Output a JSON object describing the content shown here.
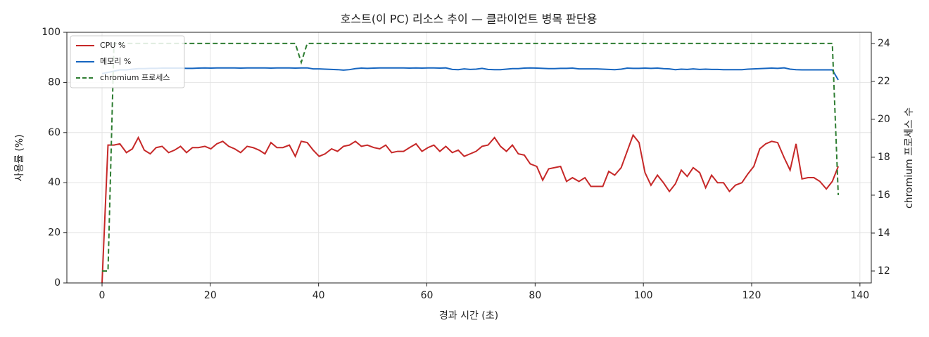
{
  "chart_data": {
    "type": "line",
    "title": "호스트(이 PC) 리소스 추이 — 클라이언트 병목 판단용",
    "xlabel": "경과 시간 (초)",
    "ylabel": "사용률 (%)",
    "y2label": "chromium 프로세스 수",
    "x": [
      0,
      1.1,
      2.2,
      3.3,
      4.5,
      5.6,
      6.7,
      7.8,
      8.9,
      10.0,
      11.1,
      12.3,
      13.4,
      14.5,
      15.6,
      16.7,
      17.8,
      19.0,
      20.1,
      21.2,
      22.3,
      23.4,
      24.5,
      25.6,
      26.8,
      27.9,
      29.0,
      30.1,
      31.2,
      32.3,
      33.4,
      34.6,
      35.7,
      36.8,
      37.9,
      39.0,
      40.1,
      41.2,
      42.4,
      43.5,
      44.6,
      45.7,
      46.8,
      47.9,
      49.0,
      50.2,
      51.3,
      52.4,
      53.5,
      54.6,
      55.7,
      56.8,
      58.0,
      59.1,
      60.2,
      61.3,
      62.4,
      63.5,
      64.7,
      65.8,
      66.9,
      68.0,
      69.1,
      70.2,
      71.3,
      72.5,
      73.6,
      74.7,
      75.8,
      76.9,
      78.0,
      79.1,
      80.3,
      81.4,
      82.5,
      83.6,
      84.7,
      85.8,
      86.9,
      88.1,
      89.2,
      90.3,
      91.4,
      92.5,
      93.6,
      94.7,
      95.9,
      97.0,
      98.1,
      99.2,
      100.3,
      101.4,
      102.6,
      103.7,
      104.8,
      105.9,
      107.0,
      108.1,
      109.2,
      110.4,
      111.5,
      112.6,
      113.7,
      114.8,
      115.9,
      117.0,
      118.2,
      119.3,
      120.4,
      121.5,
      122.6,
      123.7,
      124.8,
      126.0,
      127.1,
      128.2,
      129.3,
      130.4,
      131.5,
      132.6,
      133.8,
      134.9,
      136.0
    ],
    "series": [
      {
        "name": "CPU %",
        "color": "#c62828",
        "linestyle": "solid",
        "axis": "y",
        "values": [
          0,
          55,
          55,
          55.5,
          52,
          53.5,
          58,
          53,
          51.5,
          54,
          54.5,
          52,
          53,
          54.5,
          52,
          54,
          54,
          54.5,
          53.5,
          55.5,
          56.5,
          54.5,
          53.5,
          52,
          54.5,
          54,
          53,
          51.5,
          56,
          54,
          54,
          55,
          50.5,
          56.5,
          56,
          53,
          50.5,
          51.5,
          53.5,
          52.5,
          54.5,
          55,
          56.5,
          54.5,
          55,
          54,
          53.5,
          55,
          52,
          52.5,
          52.5,
          54,
          55.5,
          52.5,
          54,
          55,
          52.5,
          54.5,
          52,
          53,
          50.5,
          51.5,
          52.5,
          54.5,
          55,
          58,
          54.5,
          52.5,
          55,
          51.5,
          51,
          47.5,
          46.5,
          41,
          45.5,
          46,
          46.5,
          40.5,
          42,
          40.5,
          42,
          38.5,
          38.5,
          38.5,
          44.5,
          43,
          46,
          52.5,
          59,
          56,
          44,
          39,
          43,
          40,
          36.5,
          39.5,
          45,
          42.5,
          46,
          44,
          38,
          43,
          40,
          40,
          36.5,
          39,
          40,
          43.5,
          46.5,
          53.5,
          55.5,
          56.5,
          56,
          50,
          45,
          55.5,
          41.5,
          42,
          42,
          40.5,
          37.5,
          40.5,
          46.5
        ]
      },
      {
        "name": "메모리 %",
        "color": "#1565c0",
        "linestyle": "solid",
        "axis": "y",
        "values": [
          83.5,
          84,
          84.5,
          85,
          85,
          85.3,
          85.5,
          85.5,
          85.6,
          85.6,
          85.7,
          85.7,
          85.7,
          85.7,
          85.6,
          85.6,
          85.7,
          85.8,
          85.7,
          85.8,
          85.8,
          85.8,
          85.8,
          85.7,
          85.8,
          85.8,
          85.8,
          85.8,
          85.7,
          85.8,
          85.8,
          85.8,
          85.7,
          85.8,
          85.8,
          85.4,
          85.4,
          85.3,
          85.2,
          85.1,
          84.9,
          85.1,
          85.5,
          85.7,
          85.6,
          85.7,
          85.8,
          85.8,
          85.8,
          85.8,
          85.8,
          85.7,
          85.8,
          85.7,
          85.8,
          85.8,
          85.7,
          85.8,
          85.2,
          85.1,
          85.4,
          85.2,
          85.3,
          85.6,
          85.2,
          85.1,
          85.1,
          85.3,
          85.5,
          85.5,
          85.7,
          85.8,
          85.7,
          85.6,
          85.5,
          85.5,
          85.6,
          85.6,
          85.7,
          85.4,
          85.4,
          85.4,
          85.4,
          85.3,
          85.2,
          85.1,
          85.3,
          85.7,
          85.6,
          85.6,
          85.7,
          85.6,
          85.7,
          85.5,
          85.4,
          85.1,
          85.3,
          85.2,
          85.4,
          85.2,
          85.3,
          85.2,
          85.2,
          85.1,
          85.1,
          85.1,
          85.1,
          85.3,
          85.4,
          85.5,
          85.6,
          85.7,
          85.6,
          85.8,
          85.3,
          85.1,
          85,
          85,
          85,
          85,
          85,
          85,
          81
        ]
      },
      {
        "name": "chromium 프로세스",
        "color": "#2e7d32",
        "linestyle": "dashed",
        "axis": "y2",
        "values": [
          12,
          12,
          24,
          24,
          24,
          24,
          24,
          24,
          24,
          24,
          24,
          24,
          24,
          24,
          24,
          24,
          24,
          24,
          24,
          24,
          24,
          24,
          24,
          24,
          24,
          24,
          24,
          24,
          24,
          24,
          24,
          24,
          24,
          23,
          24,
          24,
          24,
          24,
          24,
          24,
          24,
          24,
          24,
          24,
          24,
          24,
          24,
          24,
          24,
          24,
          24,
          24,
          24,
          24,
          24,
          24,
          24,
          24,
          24,
          24,
          24,
          24,
          24,
          24,
          24,
          24,
          24,
          24,
          24,
          24,
          24,
          24,
          24,
          24,
          24,
          24,
          24,
          24,
          24,
          24,
          24,
          24,
          24,
          24,
          24,
          24,
          24,
          24,
          24,
          24,
          24,
          24,
          24,
          24,
          24,
          24,
          24,
          24,
          24,
          24,
          24,
          24,
          24,
          24,
          24,
          24,
          24,
          24,
          24,
          24,
          24,
          24,
          24,
          24,
          24,
          24,
          24,
          24,
          24,
          24,
          24,
          24,
          16
        ]
      }
    ],
    "xlim": [
      -6.5,
      142.1
    ],
    "ylim": [
      0,
      100
    ],
    "y2lim": [
      11.37,
      24.59
    ],
    "xticks": [
      0,
      20,
      40,
      60,
      80,
      100,
      120,
      140
    ],
    "yticks": [
      0,
      20,
      40,
      60,
      80,
      100
    ],
    "y2ticks": [
      12,
      14,
      16,
      18,
      20,
      22,
      24
    ],
    "grid": true,
    "legend": "upper-left"
  }
}
